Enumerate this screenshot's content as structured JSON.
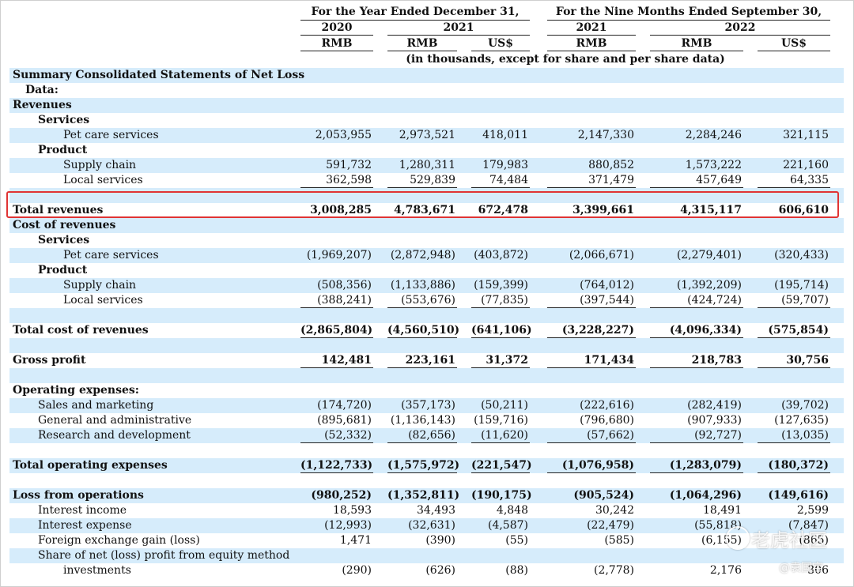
{
  "header": {
    "group_year": "For the Year Ended December 31,",
    "group_nine": "For the Nine Months Ended September 30,",
    "year_2020": "2020",
    "year_2021a": "2021",
    "year_2021b": "2021",
    "year_2022": "2022",
    "cur": [
      "RMB",
      "RMB",
      "US$",
      "RMB",
      "RMB",
      "US$"
    ],
    "units": "(in thousands, except for share and per share data)"
  },
  "rows": [
    {
      "label": "Summary Consolidated Statements of Net Loss",
      "indent": 0,
      "bold": true,
      "shade": true,
      "v": []
    },
    {
      "label": "Data:",
      "indent": 1,
      "bold": true,
      "shade": false,
      "v": []
    },
    {
      "label": "Revenues",
      "indent": 0,
      "bold": true,
      "shade": true,
      "v": []
    },
    {
      "label": "Services",
      "indent": 2,
      "bold": true,
      "shade": false,
      "v": []
    },
    {
      "label": "Pet care services",
      "indent": 3,
      "bold": false,
      "shade": true,
      "v": [
        "2,053,955",
        "2,973,521",
        "418,011",
        "2,147,330",
        "2,284,246",
        "321,115"
      ]
    },
    {
      "label": "Product",
      "indent": 2,
      "bold": true,
      "shade": false,
      "v": []
    },
    {
      "label": "Supply chain",
      "indent": 3,
      "bold": false,
      "shade": true,
      "v": [
        "591,732",
        "1,280,311",
        "179,983",
        "880,852",
        "1,573,222",
        "221,160"
      ]
    },
    {
      "label": "Local services",
      "indent": 3,
      "bold": false,
      "shade": false,
      "v": [
        "362,598",
        "529,839",
        "74,484",
        "371,479",
        "457,649",
        "64,335"
      ],
      "under": true
    },
    {
      "label": "",
      "indent": 0,
      "bold": false,
      "shade": true,
      "v": []
    },
    {
      "label": "Total revenues",
      "indent": 0,
      "bold": true,
      "shade": false,
      "v": [
        "3,008,285",
        "4,783,671",
        "672,478",
        "3,399,661",
        "4,315,117",
        "606,610"
      ]
    },
    {
      "label": "Cost of revenues",
      "indent": 0,
      "bold": true,
      "shade": true,
      "v": []
    },
    {
      "label": "Services",
      "indent": 2,
      "bold": true,
      "shade": false,
      "v": []
    },
    {
      "label": "Pet care services",
      "indent": 3,
      "bold": false,
      "shade": true,
      "v": [
        "(1,969,207)",
        "(2,872,948)",
        "(403,872)",
        "(2,066,671)",
        "(2,279,401)",
        "(320,433)"
      ]
    },
    {
      "label": "Product",
      "indent": 2,
      "bold": true,
      "shade": false,
      "v": []
    },
    {
      "label": "Supply chain",
      "indent": 3,
      "bold": false,
      "shade": true,
      "v": [
        "(508,356)",
        "(1,133,886)",
        "(159,399)",
        "(764,012)",
        "(1,392,209)",
        "(195,714)"
      ]
    },
    {
      "label": "Local services",
      "indent": 3,
      "bold": false,
      "shade": false,
      "v": [
        "(388,241)",
        "(553,676)",
        "(77,835)",
        "(397,544)",
        "(424,724)",
        "(59,707)"
      ],
      "under": true
    },
    {
      "label": "",
      "indent": 0,
      "bold": false,
      "shade": true,
      "v": []
    },
    {
      "label": "Total cost of revenues",
      "indent": 0,
      "bold": true,
      "shade": false,
      "v": [
        "(2,865,804)",
        "(4,560,510)",
        "(641,106)",
        "(3,228,227)",
        "(4,096,334)",
        "(575,854)"
      ],
      "under": true
    },
    {
      "label": "",
      "indent": 0,
      "bold": false,
      "shade": true,
      "v": []
    },
    {
      "label": "Gross profit",
      "indent": 0,
      "bold": true,
      "shade": false,
      "v": [
        "142,481",
        "223,161",
        "31,372",
        "171,434",
        "218,783",
        "30,756"
      ],
      "under": true
    },
    {
      "label": "",
      "indent": 0,
      "bold": false,
      "shade": true,
      "v": []
    },
    {
      "label": "Operating expenses:",
      "indent": 0,
      "bold": true,
      "shade": false,
      "v": []
    },
    {
      "label": "Sales and marketing",
      "indent": 2,
      "bold": false,
      "shade": true,
      "v": [
        "(174,720)",
        "(357,173)",
        "(50,211)",
        "(222,616)",
        "(282,419)",
        "(39,702)"
      ]
    },
    {
      "label": "General and administrative",
      "indent": 2,
      "bold": false,
      "shade": false,
      "v": [
        "(895,681)",
        "(1,136,143)",
        "(159,716)",
        "(796,680)",
        "(907,933)",
        "(127,635)"
      ]
    },
    {
      "label": "Research and development",
      "indent": 2,
      "bold": false,
      "shade": true,
      "v": [
        "(52,332)",
        "(82,656)",
        "(11,620)",
        "(57,662)",
        "(92,727)",
        "(13,035)"
      ],
      "under": true
    },
    {
      "label": "",
      "indent": 0,
      "bold": false,
      "shade": false,
      "v": []
    },
    {
      "label": "Total operating expenses",
      "indent": 0,
      "bold": true,
      "shade": true,
      "v": [
        "(1,122,733)",
        "(1,575,972)",
        "(221,547)",
        "(1,076,958)",
        "(1,283,079)",
        "(180,372)"
      ],
      "under": true
    },
    {
      "label": "",
      "indent": 0,
      "bold": false,
      "shade": false,
      "v": []
    },
    {
      "label": "Loss from operations",
      "indent": 0,
      "bold": true,
      "shade": true,
      "v": [
        "(980,252)",
        "(1,352,811)",
        "(190,175)",
        "(905,524)",
        "(1,064,296)",
        "(149,616)"
      ]
    },
    {
      "label": "Interest income",
      "indent": 2,
      "bold": false,
      "shade": false,
      "v": [
        "18,593",
        "34,493",
        "4,848",
        "30,242",
        "18,491",
        "2,599"
      ]
    },
    {
      "label": "Interest expense",
      "indent": 2,
      "bold": false,
      "shade": true,
      "v": [
        "(12,993)",
        "(32,631)",
        "(4,587)",
        "(22,479)",
        "(55,818)",
        "(7,847)"
      ]
    },
    {
      "label": "Foreign exchange gain (loss)",
      "indent": 2,
      "bold": false,
      "shade": false,
      "v": [
        "1,471",
        "(390)",
        "(55)",
        "(585)",
        "(6,155)",
        "(865)"
      ]
    },
    {
      "label": "Share of net (loss) profit from equity method",
      "indent": 2,
      "bold": false,
      "shade": true,
      "v": []
    },
    {
      "label": "investments",
      "indent": 3,
      "bold": false,
      "shade": false,
      "v": [
        "(290)",
        "(626)",
        "(88)",
        "(2,778)",
        "2,176",
        "306"
      ]
    }
  ],
  "watermark": {
    "brand": "老虎社区",
    "handle": "@袁国宝"
  },
  "highlight_color": "#e03434",
  "shade_color": "#d6ecfb"
}
